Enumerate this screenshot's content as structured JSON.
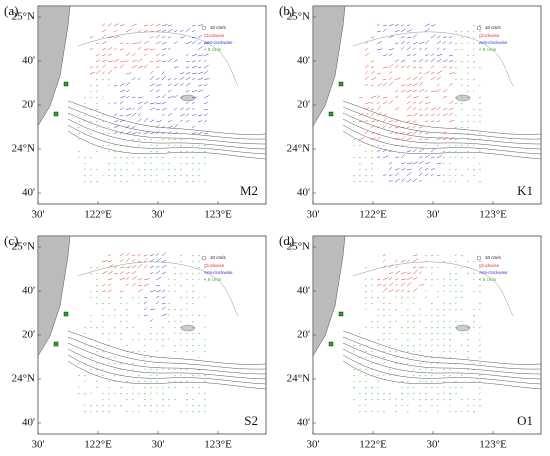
{
  "panels": [
    {
      "label": "(a)",
      "constituent": "M2"
    },
    {
      "label": "(b)",
      "constituent": "K1"
    },
    {
      "label": "(c)",
      "constituent": "S2"
    },
    {
      "label": "(d)",
      "constituent": "O1"
    }
  ],
  "y_axis_labels": [
    "25°N",
    "40'",
    "20'",
    "24°N",
    "40'"
  ],
  "x_axis_labels": [
    "30'",
    "122°E",
    "30'",
    "123°E"
  ],
  "legend": {
    "scale": "10 cm/s",
    "clockwise": "Clockwise",
    "anticlockwise": "Anti-clockwise",
    "weak": "< 8 cm/s"
  }
}
